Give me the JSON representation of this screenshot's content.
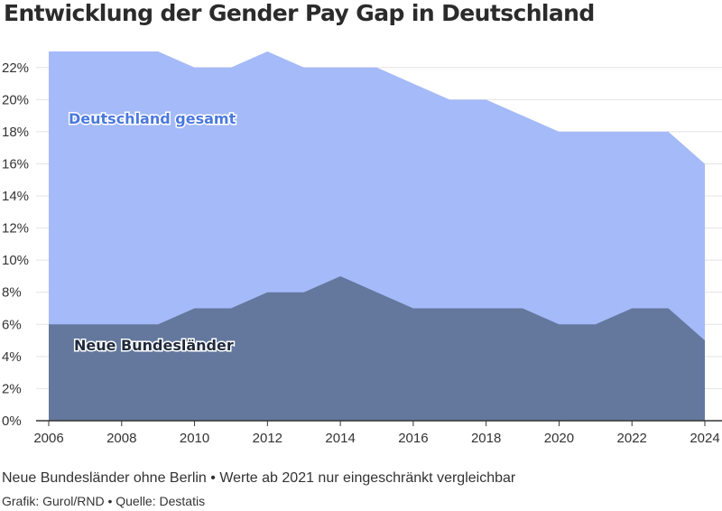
{
  "title": "Entwicklung der Gender Pay Gap in Deutschland",
  "note": "Neue Bundesländer ohne Berlin • Werte ab 2021 nur eingeschränkt vergleichbar",
  "credit": "Grafik: Gurol/RND • Quelle: Destatis",
  "colors": {
    "gesamt_fill": "#a5baf8",
    "gesamt_label": "#4a78e0",
    "neue_fill": "#64789e",
    "neue_label": "#1f2a3d",
    "grid": "#e4e4e4",
    "axis": "#333333"
  },
  "chart_data": {
    "type": "area",
    "x": [
      2006,
      2007,
      2008,
      2009,
      2010,
      2011,
      2012,
      2013,
      2014,
      2015,
      2016,
      2017,
      2018,
      2019,
      2020,
      2021,
      2022,
      2023,
      2024
    ],
    "series": [
      {
        "name": "Deutschland gesamt",
        "values": [
          23,
          23,
          23,
          23,
          22,
          22,
          23,
          22,
          22,
          22,
          21,
          20,
          20,
          19,
          18,
          18,
          18,
          18,
          16
        ]
      },
      {
        "name": "Neue Bundesländer",
        "values": [
          6,
          6,
          6,
          6,
          7,
          7,
          8,
          8,
          9,
          8,
          7,
          7,
          7,
          7,
          6,
          6,
          7,
          7,
          5
        ]
      }
    ],
    "xlim": [
      2006,
      2024
    ],
    "ylim": [
      0,
      23
    ],
    "y_ticks": [
      0,
      2,
      4,
      6,
      8,
      10,
      12,
      14,
      16,
      18,
      20,
      22
    ],
    "x_ticks": [
      2006,
      2008,
      2010,
      2012,
      2014,
      2016,
      2018,
      2020,
      2022,
      2024
    ],
    "y_tick_suffix": "%",
    "grid": true,
    "legend": "inline labels"
  }
}
